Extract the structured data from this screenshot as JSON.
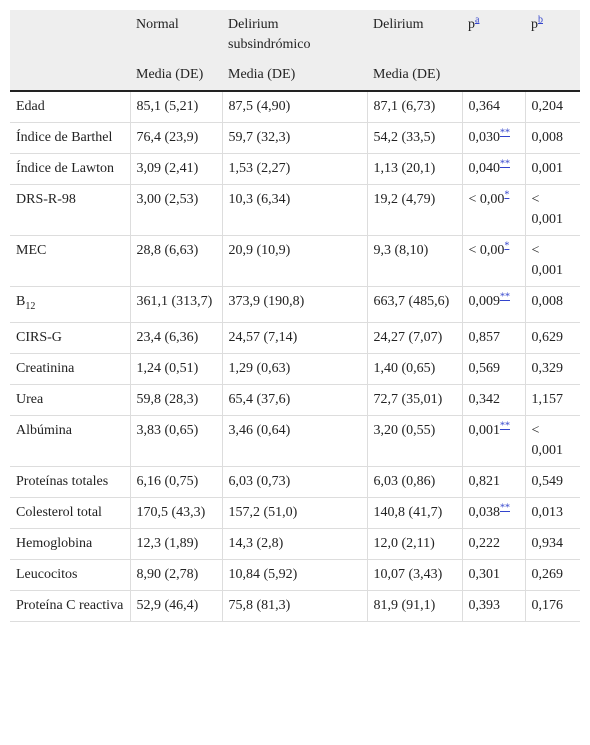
{
  "table": {
    "columns": [
      {
        "name": "Normal",
        "sub": "Media (DE)"
      },
      {
        "name": "Delirium subsindrómico",
        "sub": "Media (DE)"
      },
      {
        "name": "Delirium",
        "sub": "Media (DE)"
      },
      {
        "name": "p",
        "sup": "a"
      },
      {
        "name": "p",
        "sup": "b"
      }
    ],
    "rows": [
      {
        "label": "Edad",
        "cells": [
          "85,1 (5,21)",
          "87,5 (4,90)",
          "87,1 (6,73)",
          "0,364",
          "0,204"
        ]
      },
      {
        "label": "Índice de Barthel",
        "cells": [
          "76,4 (23,9)",
          "59,7 (32,3)",
          "54,2 (33,5)",
          {
            "text": "0,030",
            "note": "**"
          },
          "0,008"
        ]
      },
      {
        "label": "Índice de Lawton",
        "cells": [
          "3,09 (2,41)",
          "1,53 (2,27)",
          "1,13 (20,1)",
          {
            "text": "0,040",
            "note": "**"
          },
          "0,001"
        ]
      },
      {
        "label": "DRS-R-98",
        "cells": [
          "3,00 (2,53)",
          "10,3 (6,34)",
          "19,2 (4,79)",
          {
            "text": "< 0,00",
            "note": "*"
          },
          "< 0,001"
        ]
      },
      {
        "label": "MEC",
        "cells": [
          "28,8 (6,63)",
          "20,9 (10,9)",
          "9,3 (8,10)",
          {
            "text": "< 0,00",
            "note": "*"
          },
          "< 0,001"
        ]
      },
      {
        "label": {
          "text": "B",
          "sub": "12"
        },
        "cells": [
          "361,1 (313,7)",
          "373,9 (190,8)",
          "663,7 (485,6)",
          {
            "text": "0,009",
            "note": "**"
          },
          "0,008"
        ]
      },
      {
        "label": "CIRS-G",
        "cells": [
          "23,4 (6,36)",
          "24,57 (7,14)",
          "24,27 (7,07)",
          "0,857",
          "0,629"
        ]
      },
      {
        "label": "Creatinina",
        "cells": [
          "1,24 (0,51)",
          "1,29 (0,63)",
          "1,40 (0,65)",
          "0,569",
          "0,329"
        ]
      },
      {
        "label": "Urea",
        "cells": [
          "59,8 (28,3)",
          "65,4 (37,6)",
          "72,7 (35,01)",
          "0,342",
          "1,157"
        ]
      },
      {
        "label": "Albúmina",
        "cells": [
          "3,83 (0,65)",
          "3,46 (0,64)",
          "3,20 (0,55)",
          {
            "text": "0,001",
            "note": "**"
          },
          "< 0,001"
        ]
      },
      {
        "label": "Proteínas totales",
        "cells": [
          "6,16 (0,75)",
          "6,03 (0,73)",
          "6,03 (0,86)",
          "0,821",
          "0,549"
        ]
      },
      {
        "label": "Colesterol total",
        "cells": [
          "170,5 (43,3)",
          "157,2 (51,0)",
          "140,8 (41,7)",
          {
            "text": "0,038",
            "note": "**"
          },
          "0,013"
        ]
      },
      {
        "label": "Hemoglobina",
        "cells": [
          "12,3 (1,89)",
          "14,3 (2,8)",
          "12,0 (2,11)",
          "0,222",
          "0,934"
        ]
      },
      {
        "label": "Leucocitos",
        "cells": [
          "8,90 (2,78)",
          "10,84 (5,92)",
          "10,07 (3,43)",
          "0,301",
          "0,269"
        ]
      },
      {
        "label": "Proteína C reactiva",
        "cells": [
          "52,9 (46,4)",
          "75,8 (81,3)",
          "81,9 (91,1)",
          "0,393",
          "0,176"
        ]
      }
    ]
  }
}
